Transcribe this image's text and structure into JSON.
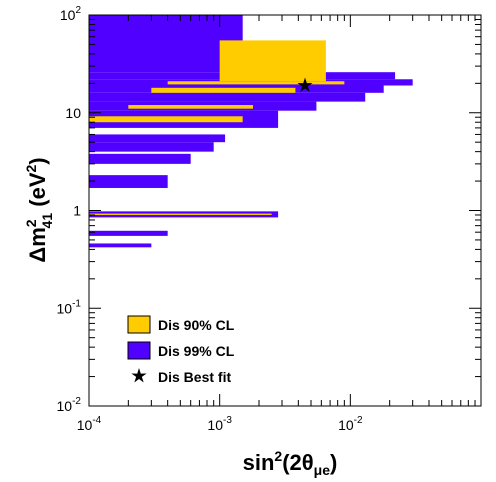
{
  "chart_data": {
    "type": "scatter",
    "x_scale": "log",
    "y_scale": "log",
    "xlim": [
      0.0001,
      0.1
    ],
    "ylim": [
      0.01,
      100
    ],
    "x_ticks": [
      {
        "value": 0.0001,
        "base": "10",
        "exp": "-4"
      },
      {
        "value": 0.001,
        "base": "10",
        "exp": "-3"
      },
      {
        "value": 0.01,
        "base": "10",
        "exp": "-2"
      }
    ],
    "y_ticks": [
      {
        "value": 100,
        "base": "10",
        "exp": "2"
      },
      {
        "value": 10,
        "base": "10",
        "exp": ""
      },
      {
        "value": 1,
        "base": "1",
        "exp": ""
      },
      {
        "value": 0.1,
        "base": "10",
        "exp": "-1"
      },
      {
        "value": 0.01,
        "base": "10",
        "exp": "-2"
      }
    ],
    "xlabel": {
      "pre": "sin",
      "sup": "2",
      "mid": "(2θ",
      "sub": "μe",
      "post": ")"
    },
    "ylabel": {
      "pre": "Δm",
      "sup": "2",
      "sub": "41",
      "mid": " (eV",
      "sup2": "2",
      "post": ")"
    },
    "colors": {
      "cl90": "#ffcc00",
      "cl99": "#5000ff",
      "best": "#000000"
    },
    "legend": {
      "placement": "bottom-left",
      "entries": [
        {
          "label": "Dis 90% CL",
          "kind": "box",
          "color": "#ffcc00"
        },
        {
          "label": "Dis 99% CL",
          "kind": "box",
          "color": "#5000ff"
        },
        {
          "label": "Dis Best fit",
          "kind": "star",
          "color": "#000000"
        }
      ]
    },
    "series": [
      {
        "name": "Dis 99% CL",
        "color": "#5000ff",
        "regions": [
          {
            "y": [
              26,
              100
            ],
            "x_max": 0.0015
          },
          {
            "y": [
              22,
              26
            ],
            "x_max": 0.022
          },
          {
            "y": [
              19,
              22
            ],
            "x_max": 0.03
          },
          {
            "y": [
              16,
              19
            ],
            "x_max": 0.018
          },
          {
            "y": [
              13,
              16
            ],
            "x_max": 0.013
          },
          {
            "y": [
              10.5,
              13
            ],
            "x_max": 0.0055
          },
          {
            "y": [
              7,
              10.5
            ],
            "x_max": 0.0028
          },
          {
            "y": [
              5,
              6
            ],
            "x_max": 0.0011
          },
          {
            "y": [
              4,
              5
            ],
            "x_max": 0.0009
          },
          {
            "y": [
              3,
              3.8
            ],
            "x_max": 0.0006
          },
          {
            "y": [
              1.7,
              2.3
            ],
            "x_max": 0.0004
          },
          {
            "y": [
              0.85,
              0.98
            ],
            "x_max": 0.0028
          },
          {
            "y": [
              0.55,
              0.62
            ],
            "x_max": 0.0004
          },
          {
            "y": [
              0.42,
              0.46
            ],
            "x_max": 0.0003
          }
        ]
      },
      {
        "name": "Dis 90% CL",
        "color": "#ffcc00",
        "regions": [
          {
            "y": [
              21,
              55
            ],
            "x_range": [
              0.001,
              0.0065
            ]
          },
          {
            "y": [
              19.5,
              21
            ],
            "x_range": [
              0.0004,
              0.009
            ]
          },
          {
            "y": [
              16,
              18
            ],
            "x_range": [
              0.0003,
              0.0038
            ]
          },
          {
            "y": [
              11,
              12
            ],
            "x_range": [
              0.0002,
              0.0018
            ]
          },
          {
            "y": [
              8,
              9.2
            ],
            "x_range": [
              0.0001,
              0.0015
            ]
          },
          {
            "y": [
              0.9,
              0.93
            ],
            "x_range": [
              0.0001,
              0.0025
            ]
          }
        ]
      }
    ],
    "best_fit": {
      "name": "Dis Best fit",
      "x": 0.0045,
      "y": 19
    }
  }
}
